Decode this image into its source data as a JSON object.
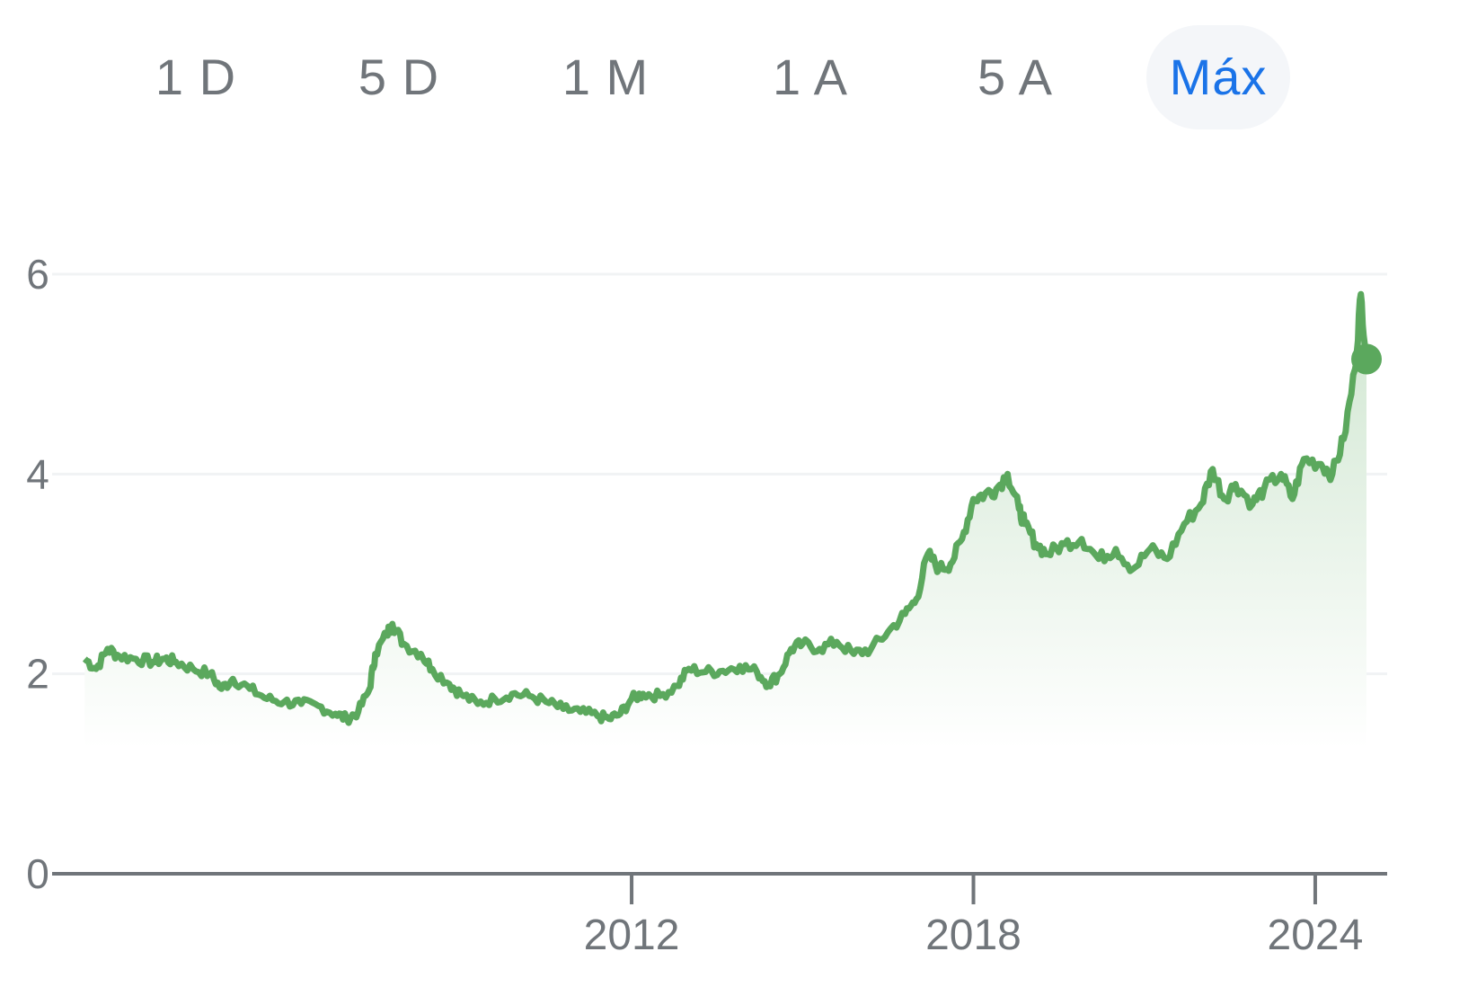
{
  "range_tabs": [
    {
      "label": "1 D",
      "selected": false
    },
    {
      "label": "5 D",
      "selected": false
    },
    {
      "label": "1 M",
      "selected": false
    },
    {
      "label": "1 A",
      "selected": false
    },
    {
      "label": "5 A",
      "selected": false
    },
    {
      "label": "Máx",
      "selected": true
    }
  ],
  "colors": {
    "line": "#5ba85d",
    "area_top": "#cfe6d0",
    "accent": "#1a73e8",
    "axis": "#70757a",
    "grid": "#f1f3f4",
    "tab_selected_bg": "#f4f6f9"
  },
  "chart_data": {
    "type": "area",
    "ylim": [
      0,
      6
    ],
    "xlim": [
      2002.3,
      2024.9
    ],
    "y_ticks": [
      0,
      2,
      4,
      6
    ],
    "y_tick_labels": [
      "0",
      "2",
      "4",
      "6"
    ],
    "x_ticks": [
      2012,
      2018,
      2024
    ],
    "x_tick_labels": [
      "2012",
      "2018",
      "2024"
    ],
    "grid": true,
    "last_point_marker": true,
    "series": [
      {
        "points": [
          [
            2002.4,
            2.15
          ],
          [
            2002.6,
            2.05
          ],
          [
            2002.8,
            2.25
          ],
          [
            2003.0,
            2.18
          ],
          [
            2003.3,
            2.15
          ],
          [
            2003.6,
            2.12
          ],
          [
            2003.8,
            2.15
          ],
          [
            2004.0,
            2.12
          ],
          [
            2004.3,
            2.05
          ],
          [
            2004.6,
            2.0
          ],
          [
            2004.8,
            1.85
          ],
          [
            2005.0,
            1.95
          ],
          [
            2005.3,
            1.85
          ],
          [
            2005.6,
            1.75
          ],
          [
            2005.9,
            1.72
          ],
          [
            2006.2,
            1.7
          ],
          [
            2006.5,
            1.68
          ],
          [
            2006.8,
            1.6
          ],
          [
            2007.0,
            1.55
          ],
          [
            2007.2,
            1.62
          ],
          [
            2007.4,
            1.85
          ],
          [
            2007.5,
            2.2
          ],
          [
            2007.7,
            2.4
          ],
          [
            2007.8,
            2.5
          ],
          [
            2008.0,
            2.3
          ],
          [
            2008.3,
            2.2
          ],
          [
            2008.5,
            2.05
          ],
          [
            2008.8,
            1.9
          ],
          [
            2009.0,
            1.8
          ],
          [
            2009.3,
            1.7
          ],
          [
            2009.6,
            1.75
          ],
          [
            2009.9,
            1.8
          ],
          [
            2010.2,
            1.78
          ],
          [
            2010.5,
            1.72
          ],
          [
            2010.8,
            1.65
          ],
          [
            2011.1,
            1.62
          ],
          [
            2011.4,
            1.58
          ],
          [
            2011.6,
            1.55
          ],
          [
            2011.8,
            1.6
          ],
          [
            2012.0,
            1.75
          ],
          [
            2012.2,
            1.8
          ],
          [
            2012.5,
            1.78
          ],
          [
            2012.8,
            1.88
          ],
          [
            2013.0,
            2.05
          ],
          [
            2013.3,
            2.02
          ],
          [
            2013.6,
            2.03
          ],
          [
            2013.9,
            2.08
          ],
          [
            2014.2,
            2.02
          ],
          [
            2014.4,
            1.9
          ],
          [
            2014.6,
            2.0
          ],
          [
            2014.8,
            2.25
          ],
          [
            2015.0,
            2.3
          ],
          [
            2015.3,
            2.25
          ],
          [
            2015.6,
            2.32
          ],
          [
            2015.9,
            2.2
          ],
          [
            2016.2,
            2.25
          ],
          [
            2016.5,
            2.42
          ],
          [
            2016.8,
            2.6
          ],
          [
            2017.0,
            2.75
          ],
          [
            2017.2,
            3.2
          ],
          [
            2017.4,
            3.05
          ],
          [
            2017.6,
            3.1
          ],
          [
            2017.8,
            3.35
          ],
          [
            2018.0,
            3.75
          ],
          [
            2018.2,
            3.8
          ],
          [
            2018.4,
            3.85
          ],
          [
            2018.6,
            4.0
          ],
          [
            2018.8,
            3.65
          ],
          [
            2018.9,
            3.5
          ],
          [
            2019.1,
            3.3
          ],
          [
            2019.3,
            3.2
          ],
          [
            2019.6,
            3.3
          ],
          [
            2019.9,
            3.35
          ],
          [
            2020.2,
            3.15
          ],
          [
            2020.5,
            3.25
          ],
          [
            2020.8,
            3.05
          ],
          [
            2021.1,
            3.25
          ],
          [
            2021.4,
            3.15
          ],
          [
            2021.7,
            3.5
          ],
          [
            2022.0,
            3.7
          ],
          [
            2022.2,
            4.05
          ],
          [
            2022.4,
            3.75
          ],
          [
            2022.6,
            3.9
          ],
          [
            2022.9,
            3.7
          ],
          [
            2023.1,
            3.85
          ],
          [
            2023.4,
            4.0
          ],
          [
            2023.6,
            3.75
          ],
          [
            2023.8,
            4.15
          ],
          [
            2024.1,
            4.1
          ],
          [
            2024.3,
            4.0
          ],
          [
            2024.5,
            4.35
          ],
          [
            2024.7,
            5.05
          ],
          [
            2024.8,
            5.8
          ],
          [
            2024.9,
            5.15
          ]
        ]
      }
    ]
  }
}
